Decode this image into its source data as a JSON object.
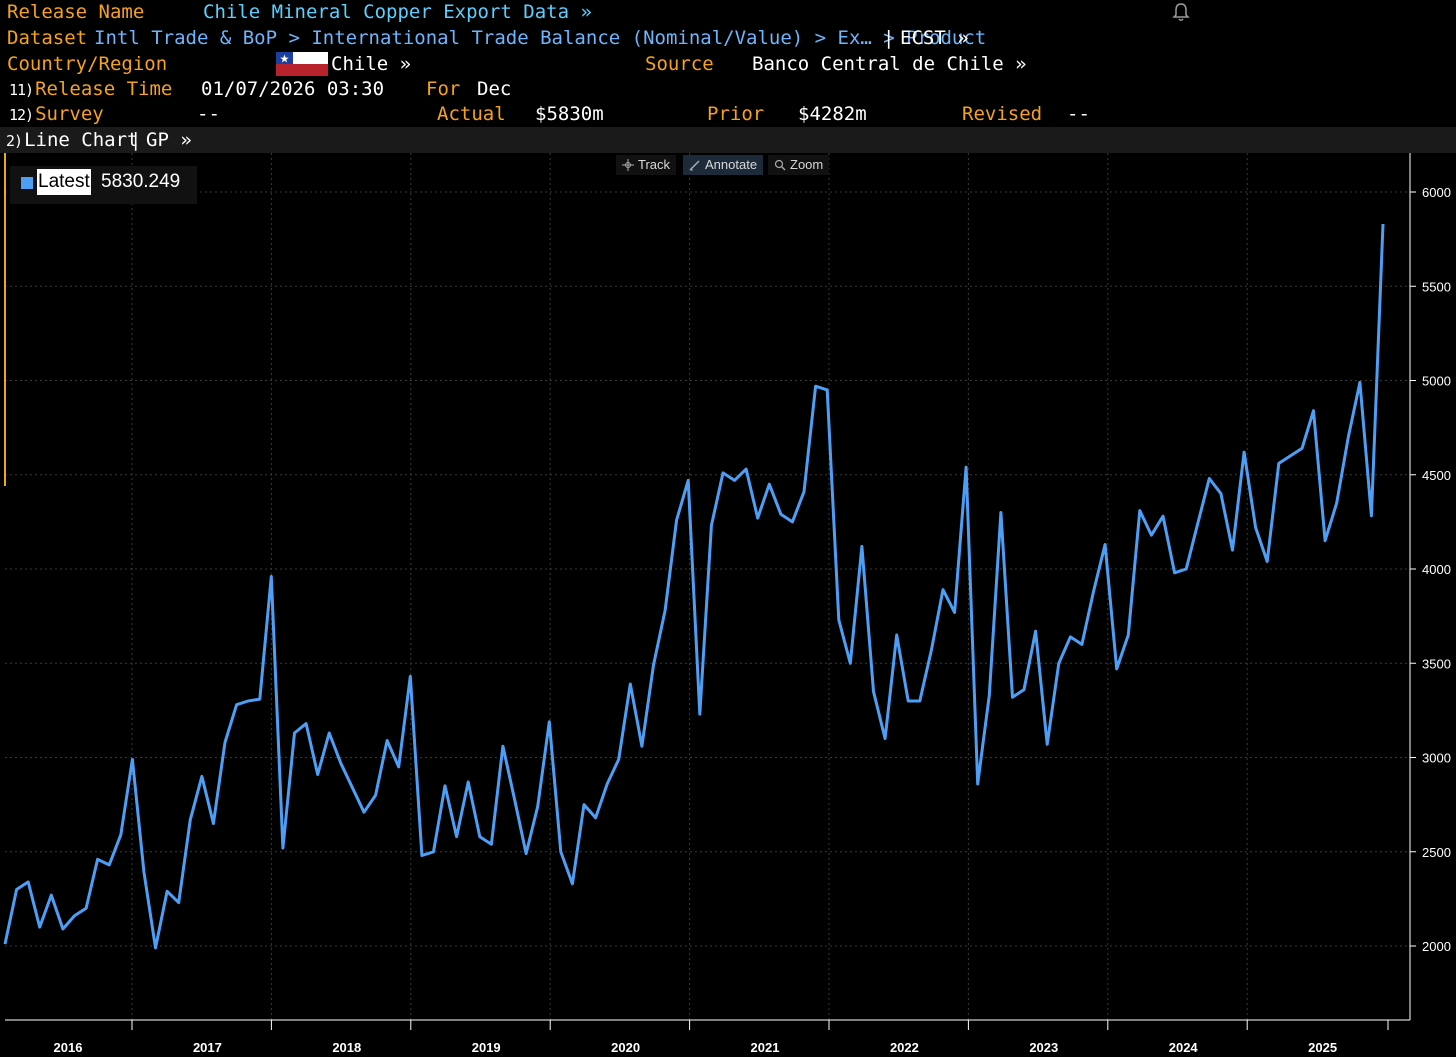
{
  "header": {
    "release_name_label": "Release Name",
    "release_name_value": "Chile Mineral Copper Export Data »",
    "dataset_label": "Dataset",
    "dataset_path": "Intl Trade & BoP > International Trade Balance (Nominal/Value) > Ex…  > Product",
    "dataset_sep": "|",
    "dataset_ticker": "ECST »",
    "country_label": "Country/Region",
    "country_value": "Chile »",
    "source_label": "Source",
    "source_value": "Banco Central de Chile »",
    "release_time_num": "11)",
    "release_time_label": "Release Time",
    "release_time_value": "01/07/2026 03:30",
    "for_label": "For",
    "for_value": "Dec",
    "survey_num": "12)",
    "survey_label": "Survey",
    "survey_value": "--",
    "actual_label": "Actual",
    "actual_value": "$5830m",
    "prior_label": "Prior",
    "prior_value": "$4282m",
    "revised_label": "Revised",
    "revised_value": "--"
  },
  "chart_bar": {
    "num": "2)",
    "label": "Line Chart",
    "sep": "|",
    "gp": "GP »"
  },
  "toolbar": {
    "track_label": "Track",
    "annotate_label": "Annotate",
    "zoom_label": "Zoom"
  },
  "legend": {
    "label": "Latest",
    "value": "5830.249"
  },
  "colors": {
    "background": "#000000",
    "label_orange": "#f7a21b",
    "title_cyan": "#5bd0ff",
    "line_blue": "#4d9ff5",
    "grid": "#3a3a3a"
  },
  "chart_data": {
    "type": "line",
    "title": "",
    "xlabel": "",
    "ylabel": "",
    "ylim": [
      1600,
      6200
    ],
    "y_ticks": [
      2000,
      2500,
      3000,
      3500,
      4000,
      4500,
      5000,
      5500,
      6000
    ],
    "x_tick_labels": [
      "2016",
      "2017",
      "2018",
      "2019",
      "2020",
      "2021",
      "2022",
      "2023",
      "2024",
      "2025"
    ],
    "grid": true,
    "legend_position": "top-left",
    "x_start": "2016-01",
    "x_frequency": "monthly",
    "series": [
      {
        "name": "Latest",
        "values": [
          2010,
          2300,
          2340,
          2100,
          2270,
          2090,
          2160,
          2200,
          2460,
          2430,
          2590,
          2990,
          2390,
          1990,
          2290,
          2230,
          2670,
          2900,
          2650,
          3080,
          3280,
          3300,
          3310,
          3960,
          2520,
          3130,
          3180,
          2910,
          3130,
          2970,
          2840,
          2710,
          2800,
          3090,
          2950,
          3430,
          2480,
          2500,
          2850,
          2580,
          2870,
          2580,
          2540,
          3060,
          2780,
          2490,
          2740,
          3190,
          2500,
          2330,
          2750,
          2680,
          2860,
          2990,
          3390,
          3060,
          3490,
          3780,
          4260,
          4470,
          3230,
          4230,
          4510,
          4470,
          4530,
          4270,
          4450,
          4290,
          4250,
          4410,
          4970,
          4950,
          3730,
          3500,
          4120,
          3350,
          3100,
          3650,
          3300,
          3300,
          3570,
          3890,
          3770,
          4540,
          2860,
          3330,
          4300,
          3320,
          3360,
          3670,
          3070,
          3500,
          3640,
          3600,
          3880,
          4130,
          3470,
          3650,
          4310,
          4180,
          4280,
          3980,
          4000,
          4240,
          4480,
          4400,
          4100,
          4620,
          4220,
          4040,
          4560,
          4600,
          4640,
          4840,
          4150,
          4350,
          4700,
          4990,
          4282,
          5830
        ]
      }
    ]
  }
}
